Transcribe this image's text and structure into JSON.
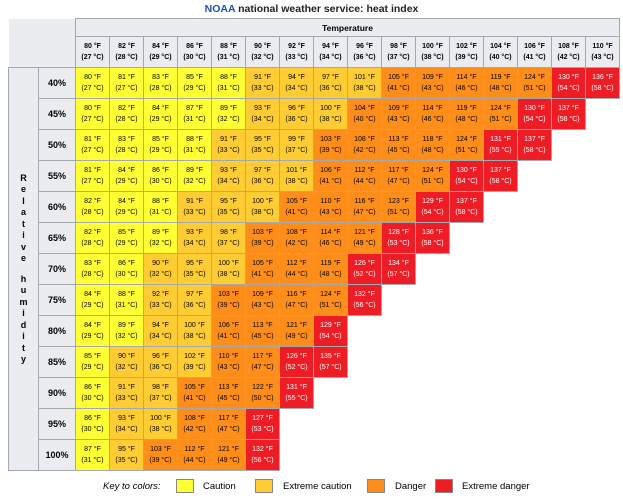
{
  "title": {
    "brand": "NOAA",
    "rest": "national weather service: heat index"
  },
  "caption": "Temperature",
  "axis_label": "Relative humidity",
  "temperatures": [
    {
      "f": "80 °F",
      "c": "(27 °C)"
    },
    {
      "f": "82 °F",
      "c": "(28 °C)"
    },
    {
      "f": "84 °F",
      "c": "(29 °C)"
    },
    {
      "f": "86 °F",
      "c": "(30 °C)"
    },
    {
      "f": "88 °F",
      "c": "(31 °C)"
    },
    {
      "f": "90 °F",
      "c": "(32 °C)"
    },
    {
      "f": "92 °F",
      "c": "(33 °C)"
    },
    {
      "f": "94 °F",
      "c": "(34 °C)"
    },
    {
      "f": "96 °F",
      "c": "(36 °C)"
    },
    {
      "f": "98 °F",
      "c": "(37 °C)"
    },
    {
      "f": "100 °F",
      "c": "(38 °C)"
    },
    {
      "f": "102 °F",
      "c": "(39 °C)"
    },
    {
      "f": "104 °F",
      "c": "(40 °C)"
    },
    {
      "f": "106 °F",
      "c": "(41 °C)"
    },
    {
      "f": "108 °F",
      "c": "(42 °C)"
    },
    {
      "f": "110 °F",
      "c": "(43 °C)"
    }
  ],
  "rows": [
    {
      "rh": "40%",
      "cells": [
        {
          "f": "80 °F",
          "c": "(27 °C)",
          "cat": 1
        },
        {
          "f": "81 °F",
          "c": "(27 °C)",
          "cat": 1
        },
        {
          "f": "83 °F",
          "c": "(28 °C)",
          "cat": 1
        },
        {
          "f": "85 °F",
          "c": "(29 °C)",
          "cat": 1
        },
        {
          "f": "88 °F",
          "c": "(31 °C)",
          "cat": 1
        },
        {
          "f": "91 °F",
          "c": "(33 °C)",
          "cat": 2
        },
        {
          "f": "94 °F",
          "c": "(34 °C)",
          "cat": 2
        },
        {
          "f": "97 °F",
          "c": "(36 °C)",
          "cat": 2
        },
        {
          "f": "101 °F",
          "c": "(38 °C)",
          "cat": 2
        },
        {
          "f": "105 °F",
          "c": "(41 °C)",
          "cat": 3
        },
        {
          "f": "109 °F",
          "c": "(43 °C)",
          "cat": 3
        },
        {
          "f": "114 °F",
          "c": "(46 °C)",
          "cat": 3
        },
        {
          "f": "119 °F",
          "c": "(48 °C)",
          "cat": 3
        },
        {
          "f": "124 °F",
          "c": "(51 °C)",
          "cat": 3
        },
        {
          "f": "130 °F",
          "c": "(54 °C)",
          "cat": 4
        },
        {
          "f": "136 °F",
          "c": "(58 °C)",
          "cat": 4
        }
      ]
    },
    {
      "rh": "45%",
      "cells": [
        {
          "f": "80 °F",
          "c": "(27 °C)",
          "cat": 1
        },
        {
          "f": "82 °F",
          "c": "(28 °C)",
          "cat": 1
        },
        {
          "f": "84 °F",
          "c": "(29 °C)",
          "cat": 1
        },
        {
          "f": "87 °F",
          "c": "(31 °C)",
          "cat": 1
        },
        {
          "f": "89 °F",
          "c": "(32 °C)",
          "cat": 1
        },
        {
          "f": "93 °F",
          "c": "(34 °C)",
          "cat": 2
        },
        {
          "f": "96 °F",
          "c": "(36 °C)",
          "cat": 2
        },
        {
          "f": "100 °F",
          "c": "(38 °C)",
          "cat": 2
        },
        {
          "f": "104 °F",
          "c": "(40 °C)",
          "cat": 3
        },
        {
          "f": "109 °F",
          "c": "(43 °C)",
          "cat": 3
        },
        {
          "f": "114 °F",
          "c": "(46 °C)",
          "cat": 3
        },
        {
          "f": "119 °F",
          "c": "(48 °C)",
          "cat": 3
        },
        {
          "f": "124 °F",
          "c": "(51 °C)",
          "cat": 3
        },
        {
          "f": "130 °F",
          "c": "(54 °C)",
          "cat": 4
        },
        {
          "f": "137 °F",
          "c": "(58 °C)",
          "cat": 4
        }
      ]
    },
    {
      "rh": "50%",
      "cells": [
        {
          "f": "81 °F",
          "c": "(27 °C)",
          "cat": 1
        },
        {
          "f": "83 °F",
          "c": "(28 °C)",
          "cat": 1
        },
        {
          "f": "85 °F",
          "c": "(29 °C)",
          "cat": 1
        },
        {
          "f": "88 °F",
          "c": "(31 °C)",
          "cat": 1
        },
        {
          "f": "91 °F",
          "c": "(33 °C)",
          "cat": 2
        },
        {
          "f": "95 °F",
          "c": "(35 °C)",
          "cat": 2
        },
        {
          "f": "99 °F",
          "c": "(37 °C)",
          "cat": 2
        },
        {
          "f": "103 °F",
          "c": "(39 °C)",
          "cat": 3
        },
        {
          "f": "108 °F",
          "c": "(42 °C)",
          "cat": 3
        },
        {
          "f": "113 °F",
          "c": "(45 °C)",
          "cat": 3
        },
        {
          "f": "118 °F",
          "c": "(48 °C)",
          "cat": 3
        },
        {
          "f": "124 °F",
          "c": "(51 °C)",
          "cat": 3
        },
        {
          "f": "131 °F",
          "c": "(55 °C)",
          "cat": 4
        },
        {
          "f": "137 °F",
          "c": "(58 °C)",
          "cat": 4
        }
      ]
    },
    {
      "rh": "55%",
      "cells": [
        {
          "f": "81 °F",
          "c": "(27 °C)",
          "cat": 1
        },
        {
          "f": "84 °F",
          "c": "(29 °C)",
          "cat": 1
        },
        {
          "f": "86 °F",
          "c": "(30 °C)",
          "cat": 1
        },
        {
          "f": "89 °F",
          "c": "(32 °C)",
          "cat": 1
        },
        {
          "f": "93 °F",
          "c": "(34 °C)",
          "cat": 2
        },
        {
          "f": "97 °F",
          "c": "(36 °C)",
          "cat": 2
        },
        {
          "f": "101 °F",
          "c": "(38 °C)",
          "cat": 2
        },
        {
          "f": "106 °F",
          "c": "(41 °C)",
          "cat": 3
        },
        {
          "f": "112 °F",
          "c": "(44 °C)",
          "cat": 3
        },
        {
          "f": "117 °F",
          "c": "(47 °C)",
          "cat": 3
        },
        {
          "f": "124 °F",
          "c": "(51 °C)",
          "cat": 3
        },
        {
          "f": "130 °F",
          "c": "(54 °C)",
          "cat": 4
        },
        {
          "f": "137 °F",
          "c": "(58 °C)",
          "cat": 4
        }
      ]
    },
    {
      "rh": "60%",
      "cells": [
        {
          "f": "82 °F",
          "c": "(28 °C)",
          "cat": 1
        },
        {
          "f": "84 °F",
          "c": "(29 °C)",
          "cat": 1
        },
        {
          "f": "88 °F",
          "c": "(31 °C)",
          "cat": 1
        },
        {
          "f": "91 °F",
          "c": "(33 °C)",
          "cat": 2
        },
        {
          "f": "95 °F",
          "c": "(35 °C)",
          "cat": 2
        },
        {
          "f": "100 °F",
          "c": "(38 °C)",
          "cat": 2
        },
        {
          "f": "105 °F",
          "c": "(41 °C)",
          "cat": 3
        },
        {
          "f": "110 °F",
          "c": "(43 °C)",
          "cat": 3
        },
        {
          "f": "116 °F",
          "c": "(47 °C)",
          "cat": 3
        },
        {
          "f": "123 °F",
          "c": "(51 °C)",
          "cat": 3
        },
        {
          "f": "129 °F",
          "c": "(54 °C)",
          "cat": 4
        },
        {
          "f": "137 °F",
          "c": "(58 °C)",
          "cat": 4
        }
      ]
    },
    {
      "rh": "65%",
      "cells": [
        {
          "f": "82 °F",
          "c": "(28 °C)",
          "cat": 1
        },
        {
          "f": "85 °F",
          "c": "(29 °C)",
          "cat": 1
        },
        {
          "f": "89 °F",
          "c": "(32 °C)",
          "cat": 1
        },
        {
          "f": "93 °F",
          "c": "(34 °C)",
          "cat": 2
        },
        {
          "f": "98 °F",
          "c": "(37 °C)",
          "cat": 2
        },
        {
          "f": "103 °F",
          "c": "(39 °C)",
          "cat": 3
        },
        {
          "f": "108 °F",
          "c": "(42 °C)",
          "cat": 3
        },
        {
          "f": "114 °F",
          "c": "(46 °C)",
          "cat": 3
        },
        {
          "f": "121 °F",
          "c": "(49 °C)",
          "cat": 3
        },
        {
          "f": "128 °F",
          "c": "(53 °C)",
          "cat": 4
        },
        {
          "f": "136 °F",
          "c": "(58 °C)",
          "cat": 4
        }
      ]
    },
    {
      "rh": "70%",
      "cells": [
        {
          "f": "83 °F",
          "c": "(28 °C)",
          "cat": 1
        },
        {
          "f": "86 °F",
          "c": "(30 °C)",
          "cat": 1
        },
        {
          "f": "90 °F",
          "c": "(32 °C)",
          "cat": 2
        },
        {
          "f": "95 °F",
          "c": "(35 °C)",
          "cat": 2
        },
        {
          "f": "100 °F",
          "c": "(38 °C)",
          "cat": 2
        },
        {
          "f": "105 °F",
          "c": "(41 °C)",
          "cat": 3
        },
        {
          "f": "112 °F",
          "c": "(44 °C)",
          "cat": 3
        },
        {
          "f": "119 °F",
          "c": "(48 °C)",
          "cat": 3
        },
        {
          "f": "126 °F",
          "c": "(52 °C)",
          "cat": 4
        },
        {
          "f": "134 °F",
          "c": "(57 °C)",
          "cat": 4
        }
      ]
    },
    {
      "rh": "75%",
      "cells": [
        {
          "f": "84 °F",
          "c": "(29 °C)",
          "cat": 1
        },
        {
          "f": "88 °F",
          "c": "(31 °C)",
          "cat": 1
        },
        {
          "f": "92 °F",
          "c": "(33 °C)",
          "cat": 2
        },
        {
          "f": "97 °F",
          "c": "(36 °C)",
          "cat": 2
        },
        {
          "f": "103 °F",
          "c": "(39 °C)",
          "cat": 3
        },
        {
          "f": "109 °F",
          "c": "(43 °C)",
          "cat": 3
        },
        {
          "f": "116 °F",
          "c": "(47 °C)",
          "cat": 3
        },
        {
          "f": "124 °F",
          "c": "(51 °C)",
          "cat": 3
        },
        {
          "f": "132 °F",
          "c": "(56 °C)",
          "cat": 4
        }
      ]
    },
    {
      "rh": "80%",
      "cells": [
        {
          "f": "84 °F",
          "c": "(29 °C)",
          "cat": 1
        },
        {
          "f": "89 °F",
          "c": "(32 °C)",
          "cat": 1
        },
        {
          "f": "94 °F",
          "c": "(34 °C)",
          "cat": 2
        },
        {
          "f": "100 °F",
          "c": "(38 °C)",
          "cat": 2
        },
        {
          "f": "106 °F",
          "c": "(41 °C)",
          "cat": 3
        },
        {
          "f": "113 °F",
          "c": "(45 °C)",
          "cat": 3
        },
        {
          "f": "121 °F",
          "c": "(49 °C)",
          "cat": 3
        },
        {
          "f": "129 °F",
          "c": "(54 °C)",
          "cat": 4
        }
      ]
    },
    {
      "rh": "85%",
      "cells": [
        {
          "f": "85 °F",
          "c": "(29 °C)",
          "cat": 1
        },
        {
          "f": "90 °F",
          "c": "(32 °C)",
          "cat": 2
        },
        {
          "f": "96 °F",
          "c": "(36 °C)",
          "cat": 2
        },
        {
          "f": "102 °F",
          "c": "(39 °C)",
          "cat": 2
        },
        {
          "f": "110 °F",
          "c": "(43 °C)",
          "cat": 3
        },
        {
          "f": "117 °F",
          "c": "(47 °C)",
          "cat": 3
        },
        {
          "f": "126 °F",
          "c": "(52 °C)",
          "cat": 4
        },
        {
          "f": "135 °F",
          "c": "(57 °C)",
          "cat": 4
        }
      ]
    },
    {
      "rh": "90%",
      "cells": [
        {
          "f": "86 °F",
          "c": "(30 °C)",
          "cat": 1
        },
        {
          "f": "91 °F",
          "c": "(33 °C)",
          "cat": 2
        },
        {
          "f": "98 °F",
          "c": "(37 °C)",
          "cat": 2
        },
        {
          "f": "105 °F",
          "c": "(41 °C)",
          "cat": 3
        },
        {
          "f": "113 °F",
          "c": "(45 °C)",
          "cat": 3
        },
        {
          "f": "122 °F",
          "c": "(50 °C)",
          "cat": 3
        },
        {
          "f": "131 °F",
          "c": "(55 °C)",
          "cat": 4
        }
      ]
    },
    {
      "rh": "95%",
      "cells": [
        {
          "f": "86 °F",
          "c": "(30 °C)",
          "cat": 1
        },
        {
          "f": "93 °F",
          "c": "(34 °C)",
          "cat": 2
        },
        {
          "f": "100 °F",
          "c": "(38 °C)",
          "cat": 2
        },
        {
          "f": "108 °F",
          "c": "(42 °C)",
          "cat": 3
        },
        {
          "f": "117 °F",
          "c": "(47 °C)",
          "cat": 3
        },
        {
          "f": "127 °F",
          "c": "(53 °C)",
          "cat": 4
        }
      ]
    },
    {
      "rh": "100%",
      "cells": [
        {
          "f": "87 °F",
          "c": "(31 °C)",
          "cat": 1
        },
        {
          "f": "95 °F",
          "c": "(35 °C)",
          "cat": 2
        },
        {
          "f": "103 °F",
          "c": "(39 °C)",
          "cat": 3
        },
        {
          "f": "112 °F",
          "c": "(44 °C)",
          "cat": 3
        },
        {
          "f": "121 °F",
          "c": "(49 °C)",
          "cat": 3
        },
        {
          "f": "132 °F",
          "c": "(56 °C)",
          "cat": 4
        }
      ]
    }
  ],
  "legend": {
    "label": "Key to colors:",
    "items": [
      {
        "name": "Caution",
        "color": "#ffff33"
      },
      {
        "name": "Extreme caution",
        "color": "#ffcc33"
      },
      {
        "name": "Danger",
        "color": "#ff8d1a"
      },
      {
        "name": "Extreme danger",
        "color": "#ee1c25"
      }
    ]
  }
}
